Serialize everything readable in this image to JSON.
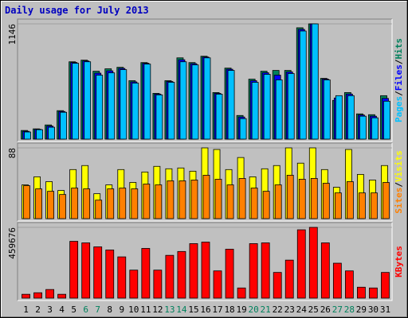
{
  "chart_data": {
    "type": "bar",
    "title": "Daily usage for July 2013",
    "categories": [
      1,
      2,
      3,
      4,
      5,
      6,
      7,
      8,
      9,
      10,
      11,
      12,
      13,
      14,
      15,
      16,
      17,
      18,
      19,
      20,
      21,
      22,
      23,
      24,
      25,
      26,
      27,
      28,
      29,
      30,
      31
    ],
    "category_colors": [
      "#000000",
      "#000000",
      "#000000",
      "#000000",
      "#000000",
      "#00805c",
      "#00805c",
      "#000000",
      "#000000",
      "#000000",
      "#000000",
      "#000000",
      "#00805c",
      "#00805c",
      "#000000",
      "#000000",
      "#000000",
      "#000000",
      "#000000",
      "#00805c",
      "#00805c",
      "#000000",
      "#000000",
      "#000000",
      "#000000",
      "#000000",
      "#00805c",
      "#00805c",
      "#000000",
      "#000000",
      "#000000"
    ],
    "legend_separator": "/",
    "panels": [
      {
        "ylim": [
          0,
          1146
        ],
        "yticks": [
          1146
        ],
        "series": [
          {
            "name": "Hits",
            "color": "#00805c",
            "values": [
              86,
              102,
              141,
              283,
              769,
              785,
              675,
              699,
              714,
              581,
              761,
              455,
              581,
              808,
              761,
              824,
              463,
              706,
              235,
              596,
              675,
              683,
              683,
              1107,
              1146,
              604,
              385,
              463,
              251,
              243,
              432
            ]
          },
          {
            "name": "Files",
            "color": "#0000ff",
            "values": [
              78,
              98,
              130,
              275,
              762,
              777,
              656,
              679,
              703,
              569,
              754,
              448,
              573,
              789,
              750,
              816,
              455,
              695,
              220,
              581,
              660,
              636,
              668,
              1091,
              1146,
              597,
              409,
              448,
              240,
              228,
              405
            ]
          },
          {
            "name": "Pages",
            "color": "#00c0ff",
            "values": [
              71,
              94,
              118,
              267,
              754,
              769,
              636,
              659,
              691,
              557,
              746,
              440,
              565,
              769,
              738,
              808,
              447,
              683,
              204,
              565,
              644,
              589,
              652,
              1075,
              1146,
              589,
              432,
              432,
              228,
              212,
              377
            ]
          }
        ]
      },
      {
        "ylim": [
          0,
          88
        ],
        "yticks": [
          88
        ],
        "series": [
          {
            "name": "Visits",
            "color": "#ffff00",
            "values": [
              42,
              52,
              46,
              35,
              61,
              66,
              31,
              42,
              61,
              45,
              58,
              65,
              62,
              63,
              59,
              88,
              86,
              61,
              76,
              52,
              62,
              66,
              88,
              69,
              88,
              61,
              39,
              86,
              55,
              48,
              66
            ]
          },
          {
            "name": "Sites",
            "color": "#ff8000",
            "values": [
              41,
              37,
              34,
              30,
              38,
              37,
              23,
              37,
              38,
              37,
              43,
              42,
              47,
              47,
              48,
              54,
              49,
              42,
              50,
              38,
              34,
              42,
              54,
              49,
              50,
              44,
              32,
              46,
              32,
              32,
              45
            ]
          }
        ]
      },
      {
        "ylim": [
          0,
          459676
        ],
        "yticks": [
          459676
        ],
        "series": [
          {
            "name": "KBytes",
            "color": "#ff0000",
            "values": [
              25000,
              35000,
              56000,
              25000,
              369000,
              359000,
              333000,
              313000,
              268000,
              182000,
              323000,
              182000,
              278000,
              303000,
              354000,
              364000,
              177000,
              318000,
              66000,
              354000,
              359000,
              167000,
              247000,
              444000,
              459676,
              359000,
              227000,
              177000,
              71000,
              66000,
              167000
            ]
          }
        ]
      }
    ]
  }
}
